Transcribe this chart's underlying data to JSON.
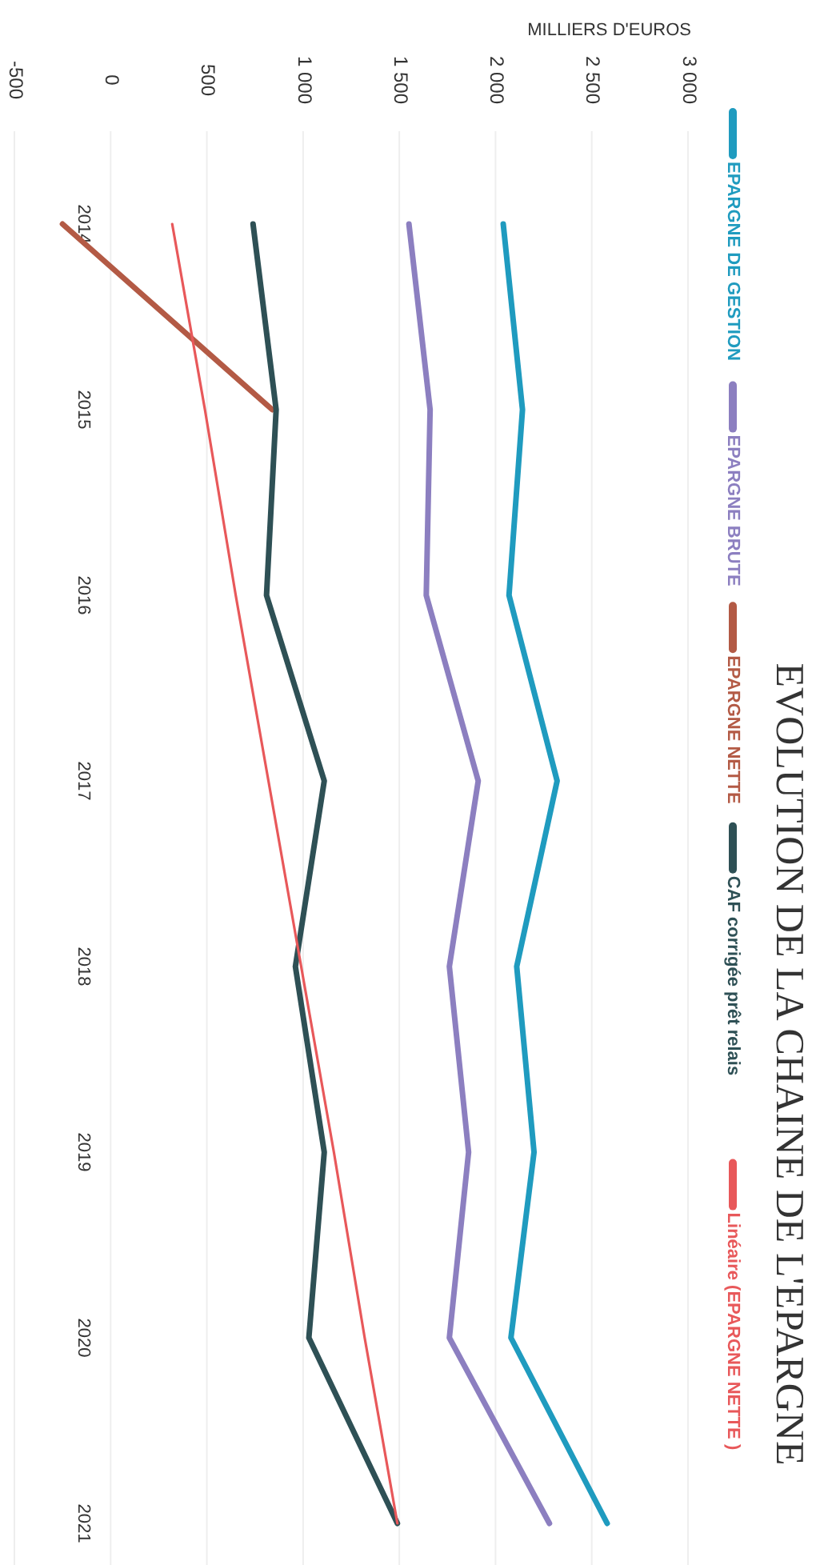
{
  "chart_data": {
    "type": "line",
    "title": "EVOLUTION DE LA CHAINE DE L'EPARGNE",
    "xlabel": "MILLIERS D'EUROS",
    "orientation": "horizontal",
    "categories": [
      "2014",
      "2015",
      "2016",
      "2017",
      "2018",
      "2019",
      "2020",
      "2021"
    ],
    "series": [
      {
        "name": "EPARGNE DE GESTION",
        "color": "#1f9bbf",
        "values": [
          2040,
          2140,
          2070,
          2320,
          2110,
          2200,
          2080,
          2580
        ]
      },
      {
        "name": "EPARGNE BRUTE",
        "color": "#8c7fc0",
        "values": [
          1550,
          1660,
          1640,
          1910,
          1760,
          1860,
          1760,
          2280
        ]
      },
      {
        "name": "EPARGNE NETTE",
        "color": "#b35a45",
        "values": [
          -250,
          840,
          null,
          null,
          null,
          null,
          null,
          null
        ]
      },
      {
        "name": "CAF corrigée prêt relais",
        "color": "#2e5055",
        "values": [
          740,
          860,
          810,
          1110,
          960,
          1110,
          1030,
          1490
        ]
      },
      {
        "name": "Linéaire (EPARGNE NETTE )",
        "color": "#e8585a",
        "type": "line",
        "values": [
          320,
          490,
          650,
          820,
          990,
          1160,
          1320,
          1490
        ]
      }
    ],
    "xlim": [
      -500,
      3000
    ],
    "xticks": [
      {
        "value": -500,
        "label": "-500"
      },
      {
        "value": 0,
        "label": "0"
      },
      {
        "value": 500,
        "label": "500"
      },
      {
        "value": 1000,
        "label": "1 000"
      },
      {
        "value": 1500,
        "label": "1 500"
      },
      {
        "value": 2000,
        "label": "2 000"
      },
      {
        "value": 2500,
        "label": "2 500"
      },
      {
        "value": 3000,
        "label": "3 000"
      }
    ],
    "grid": "x",
    "legend": "top",
    "marker": "none",
    "line_style": "solid"
  }
}
